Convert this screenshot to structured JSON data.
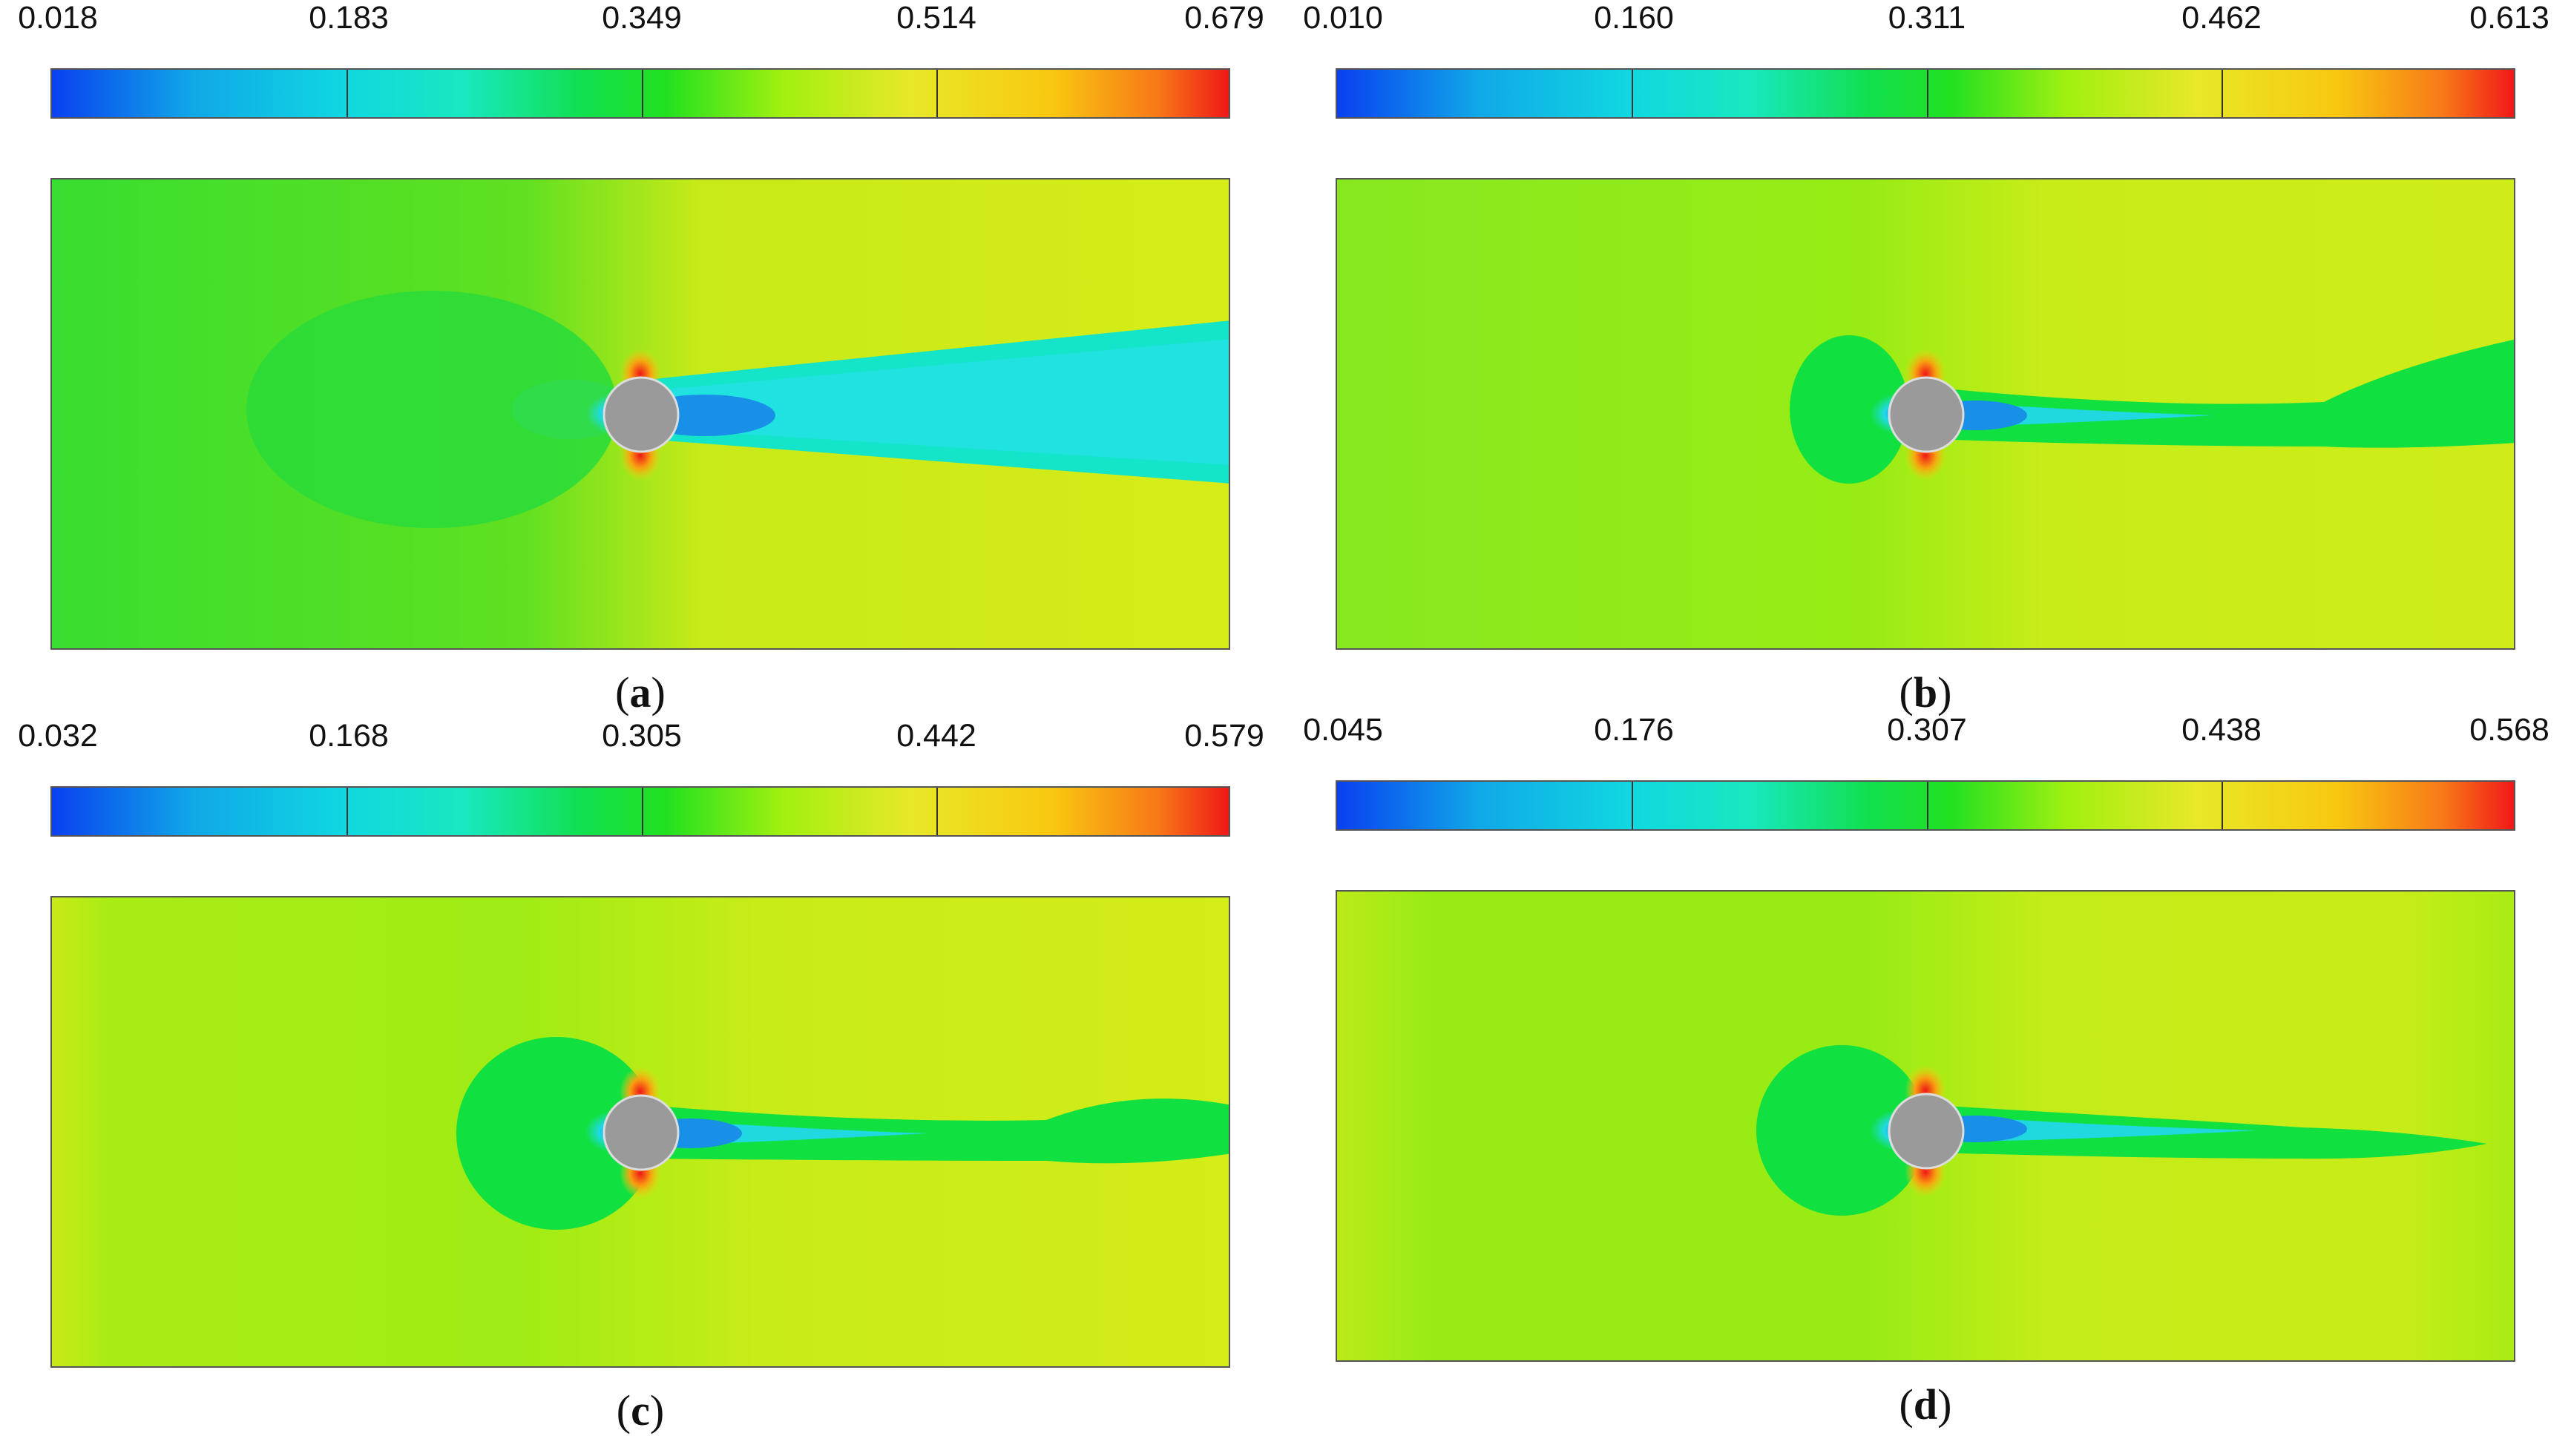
{
  "panels": [
    {
      "label": "a",
      "colorbar_ticks": [
        "0.018",
        "0.183",
        "0.349",
        "0.514",
        "0.679"
      ],
      "wake": "wide-cyan"
    },
    {
      "label": "b",
      "colorbar_ticks": [
        "0.010",
        "0.160",
        "0.311",
        "0.462",
        "0.613"
      ],
      "wake": "green-bulb"
    },
    {
      "label": "c",
      "colorbar_ticks": [
        "0.032",
        "0.168",
        "0.305",
        "0.442",
        "0.579"
      ],
      "wake": "green-bulb"
    },
    {
      "label": "d",
      "colorbar_ticks": [
        "0.045",
        "0.176",
        "0.307",
        "0.438",
        "0.568"
      ],
      "wake": "green-narrow"
    }
  ],
  "colors": {
    "cylinder": "#9a9a9a",
    "background_green": "#66e020",
    "background_yellow": "#d8ec18",
    "wake_cyan": "#20e0d8",
    "wake_green": "#10e040",
    "hotspot": "#f03010"
  }
}
